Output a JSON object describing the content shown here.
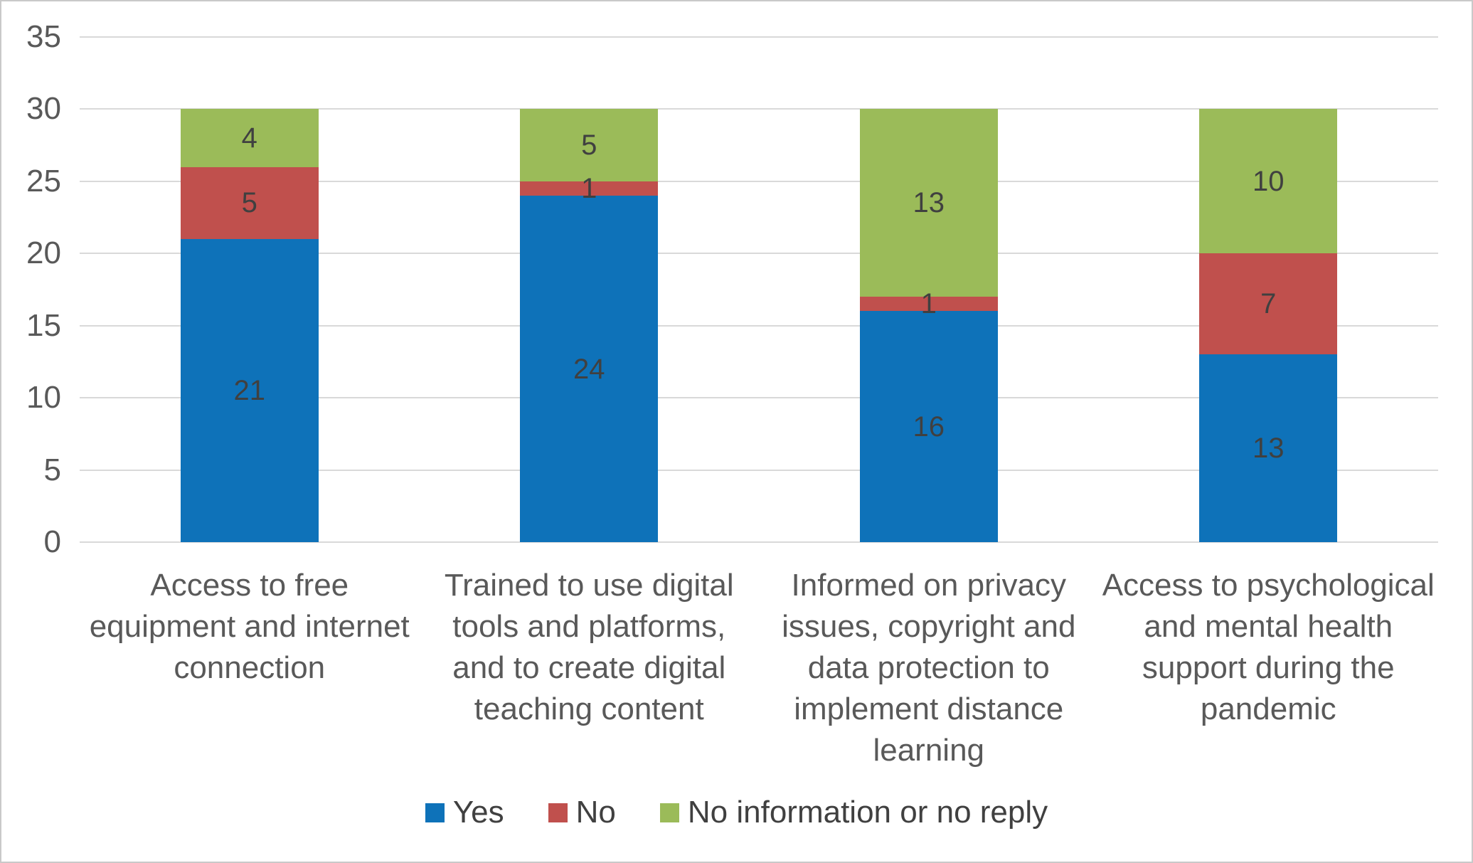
{
  "chart_data": {
    "type": "bar",
    "stacked": true,
    "title": "",
    "xlabel": "",
    "ylabel": "",
    "categories": [
      "Access to free equipment and internet connection",
      "Trained to use digital tools and platforms, and to create digital teaching content",
      "Informed on privacy issues, copyright and data protection to implement distance learning",
      "Access to psychological and mental health support during the pandemic"
    ],
    "series": [
      {
        "name": "Yes",
        "color": "#0e72b9",
        "values": [
          21,
          24,
          16,
          13
        ]
      },
      {
        "name": "No",
        "color": "#c0504d",
        "values": [
          5,
          1,
          1,
          7
        ]
      },
      {
        "name": "No information or no reply",
        "color": "#9bbb59",
        "values": [
          4,
          5,
          13,
          10
        ]
      }
    ],
    "ylim": [
      0,
      35
    ],
    "yticks": [
      0,
      5,
      10,
      15,
      20,
      25,
      30,
      35
    ],
    "grid": true,
    "legend_position": "bottom",
    "data_labels_shown": true,
    "colors": {
      "gridline": "#d9d9d9",
      "axis_text": "#595959",
      "data_label_text": "#404040",
      "legend_text": "#404040",
      "chart_border": "#c9c9c9",
      "background": "#ffffff"
    }
  }
}
